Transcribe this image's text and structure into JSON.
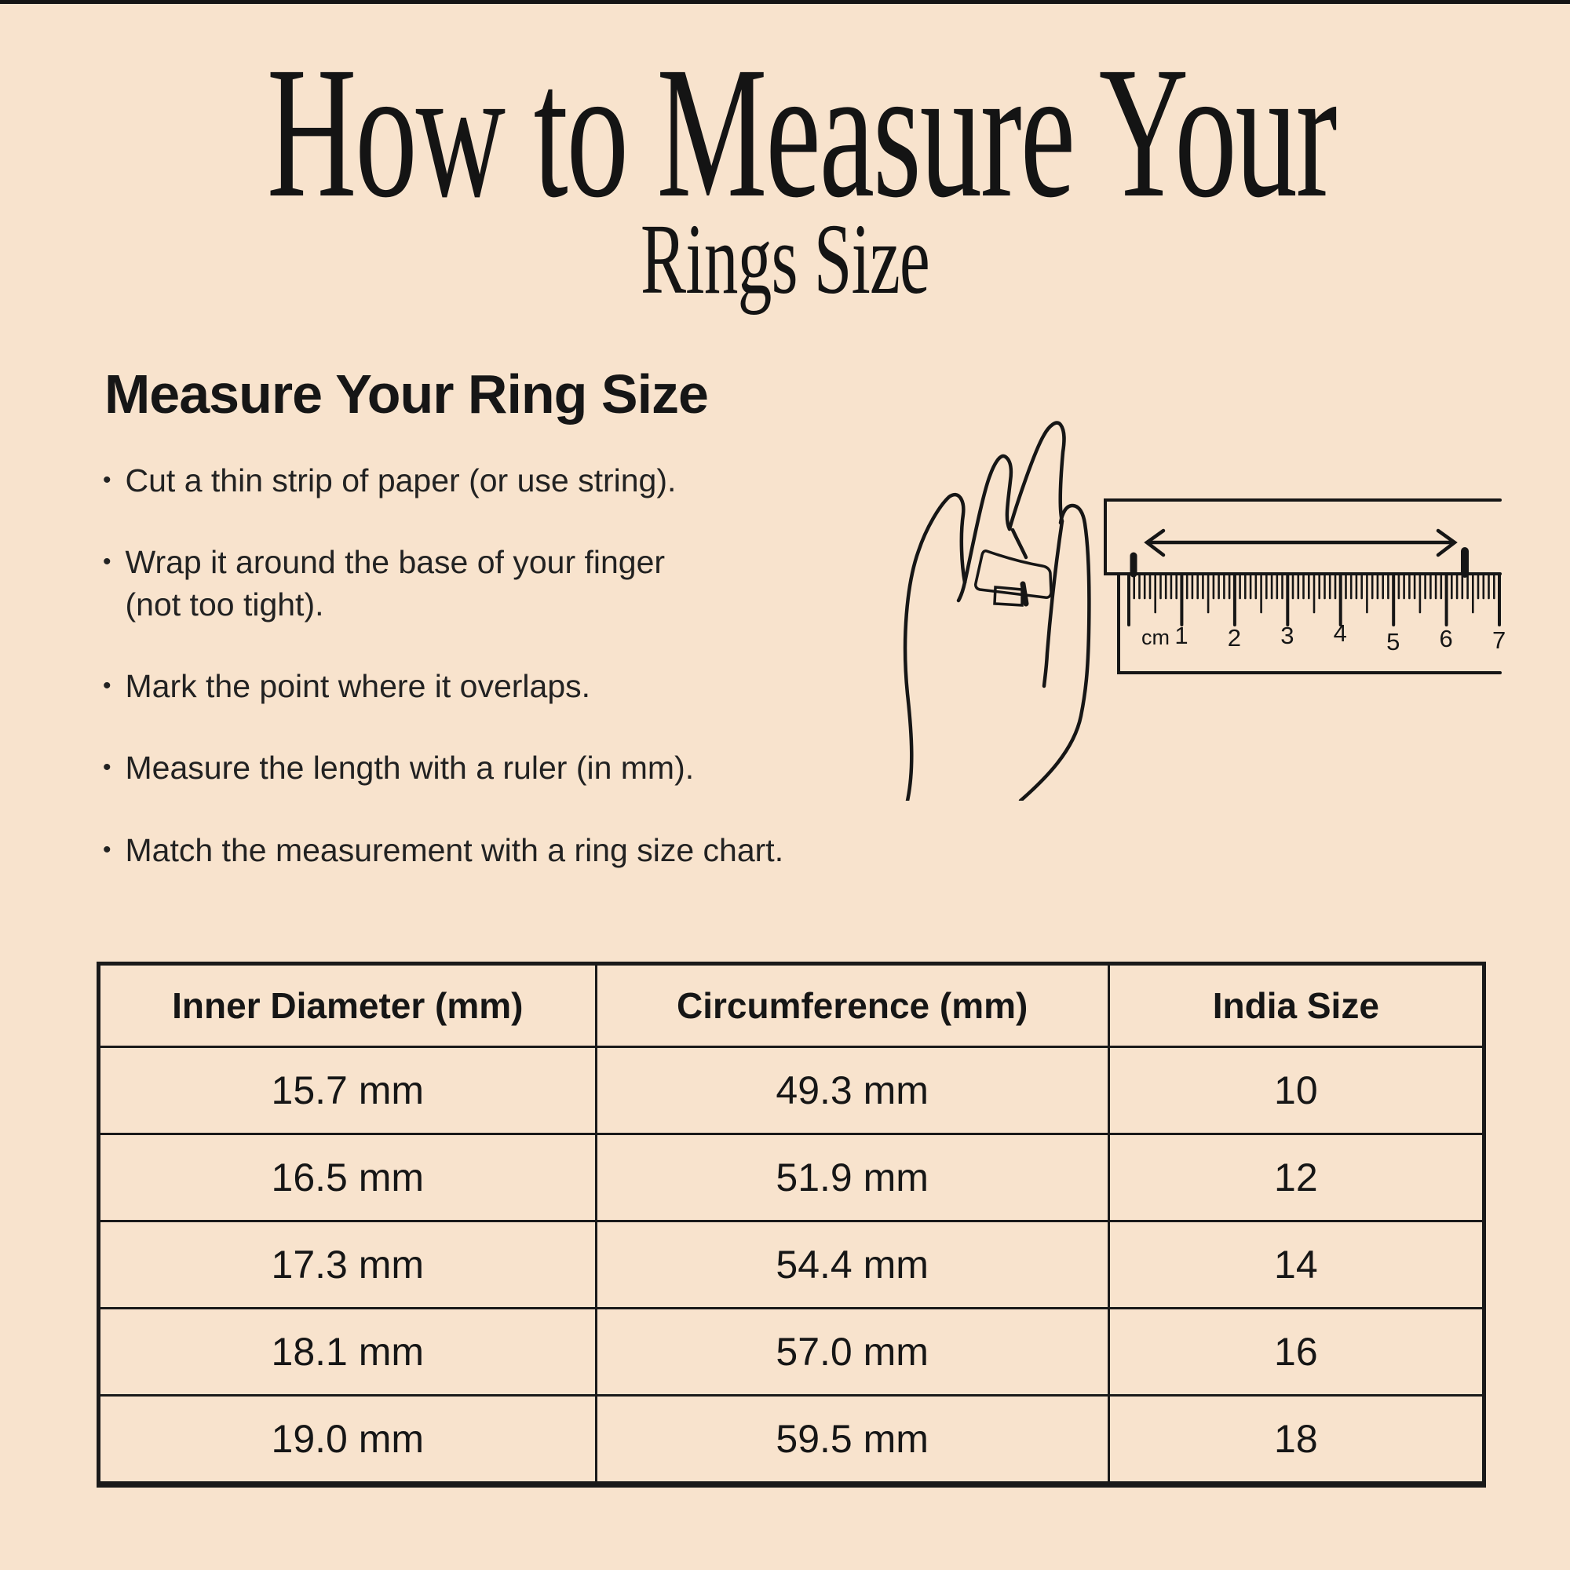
{
  "page": {
    "background_color": "#f8e3cd",
    "line_color": "#161616",
    "text_color": "#1b1b1b",
    "strip_color": "#ffffff"
  },
  "title": {
    "line1": "How to Measure Your",
    "line2": "Rings Size"
  },
  "section": {
    "heading": "Measure Your Ring Size",
    "bullets": [
      "Cut a thin strip of paper (or use string).",
      "Wrap it around the base of your finger\n(not too tight).",
      "Mark the point where it overlaps.",
      "Measure the length with a ruler (in mm).",
      "Match the measurement with a ring size chart."
    ]
  },
  "illustration": {
    "description": "line-art hand with paper strip around ring finger beside a ruler",
    "ruler": {
      "unit_label": "cm",
      "numbers": [
        "1",
        "2",
        "3",
        "4",
        "5",
        "6",
        "7"
      ]
    }
  },
  "table": {
    "headers": [
      "Inner Diameter (mm)",
      "Circumference (mm)",
      "India Size"
    ],
    "rows": [
      [
        "15.7 mm",
        "49.3 mm",
        "10"
      ],
      [
        "16.5 mm",
        "51.9 mm",
        "12"
      ],
      [
        "17.3 mm",
        "54.4 mm",
        "14"
      ],
      [
        "18.1 mm",
        "57.0 mm",
        "16"
      ],
      [
        "19.0 mm",
        "59.5 mm",
        "18"
      ]
    ]
  }
}
